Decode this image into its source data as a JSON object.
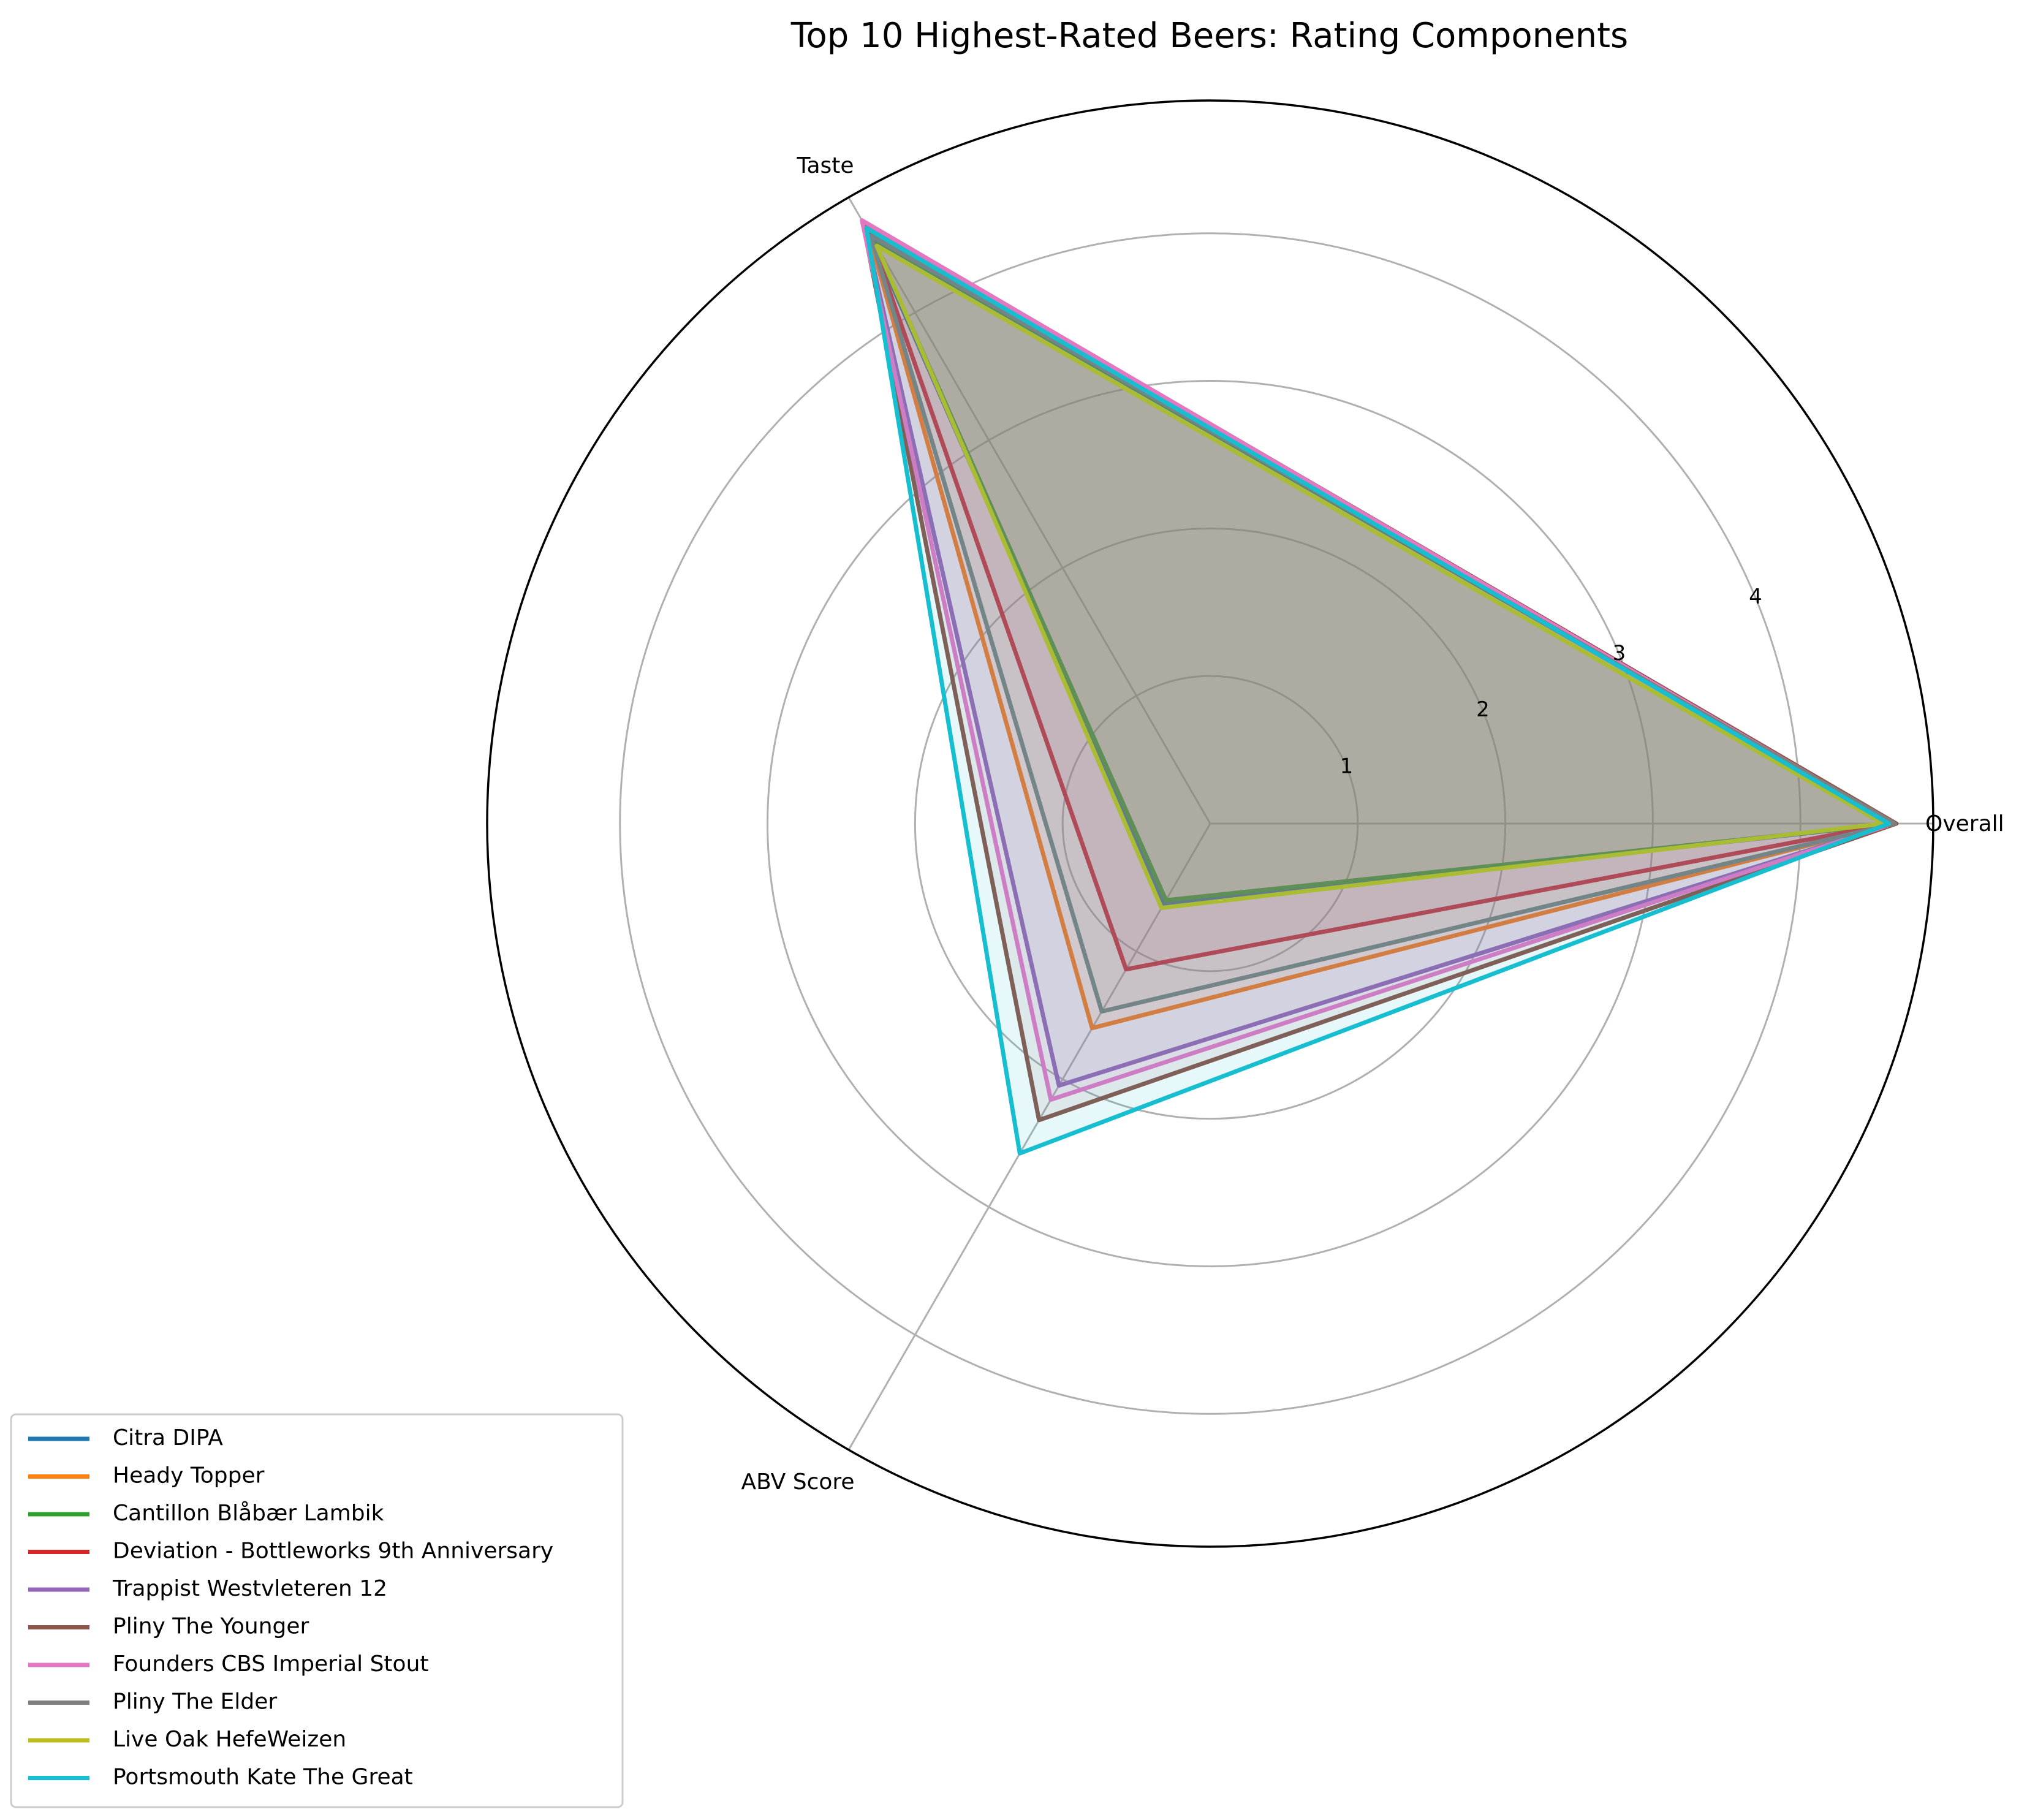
{
  "chart_data": {
    "type": "radar",
    "title": "Top 10 Highest-Rated Beers: Rating Components",
    "axes": [
      "Overall",
      "Taste",
      "ABV Score"
    ],
    "rlim": [
      0,
      4.9
    ],
    "rticks": [
      1,
      2,
      3,
      4
    ],
    "grid": true,
    "legend": "lower-left",
    "series": [
      {
        "name": "Citra DIPA",
        "color": "#1f77b4",
        "values": [
          4.63,
          4.64,
          0.63
        ]
      },
      {
        "name": "Heady Topper",
        "color": "#ff7f0e",
        "values": [
          4.63,
          4.64,
          1.6
        ]
      },
      {
        "name": "Cantillon Blåbær Lambik",
        "color": "#2ca02c",
        "values": [
          4.63,
          4.58,
          0.6
        ]
      },
      {
        "name": "Deviation - Bottleworks 9th Anniversary",
        "color": "#d62728",
        "values": [
          4.62,
          4.62,
          1.14
        ]
      },
      {
        "name": "Trappist Westvleteren 12",
        "color": "#9467bd",
        "values": [
          4.63,
          4.7,
          2.05
        ]
      },
      {
        "name": "Pliny The Younger",
        "color": "#8c564b",
        "values": [
          4.65,
          4.71,
          2.32
        ]
      },
      {
        "name": "Founders CBS Imperial Stout",
        "color": "#e377c2",
        "values": [
          4.63,
          4.72,
          2.16
        ]
      },
      {
        "name": "Pliny The Elder",
        "color": "#7f7f7f",
        "values": [
          4.64,
          4.6,
          1.47
        ]
      },
      {
        "name": "Live Oak HefeWeizen",
        "color": "#bcbd22",
        "values": [
          4.56,
          4.52,
          0.66
        ]
      },
      {
        "name": "Portsmouth Kate The Great",
        "color": "#17becf",
        "values": [
          4.6,
          4.66,
          2.58
        ]
      }
    ]
  }
}
